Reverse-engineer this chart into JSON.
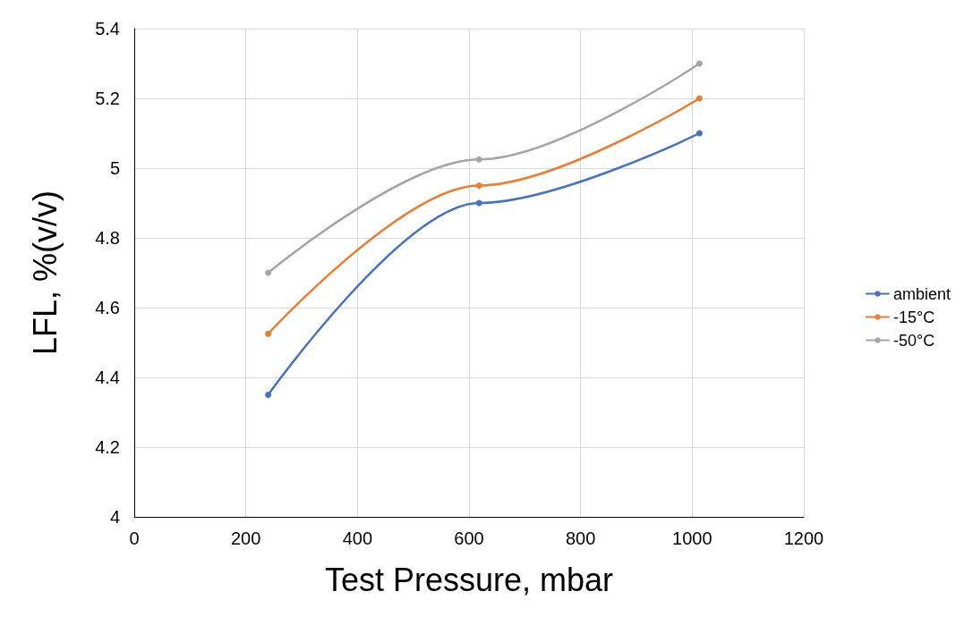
{
  "chart_data": {
    "type": "line",
    "xlabel": "Test Pressure, mbar",
    "ylabel": "LFL, %(v/v)",
    "series": [
      {
        "name": "ambient",
        "color": "#4472c4",
        "x": [
          240,
          618,
          1013
        ],
        "values": [
          4.35,
          4.9,
          5.1
        ]
      },
      {
        "name": "-15°C",
        "color": "#ed7d31",
        "x": [
          240,
          618,
          1013
        ],
        "values": [
          4.525,
          4.95,
          5.2
        ]
      },
      {
        "name": "-50°C",
        "color": "#a5a5a5",
        "x": [
          240,
          618,
          1013
        ],
        "values": [
          4.7,
          5.025,
          5.3
        ]
      }
    ],
    "xlim": [
      0,
      1200
    ],
    "xticks": [
      0,
      200,
      400,
      600,
      800,
      1000,
      1200
    ],
    "ylim": [
      4,
      5.4
    ],
    "yticks": [
      4,
      4.2,
      4.4,
      4.6,
      4.8,
      5,
      5.2,
      5.4
    ],
    "grid": true,
    "legend": "right",
    "marker": "circle",
    "line_style": "solid"
  }
}
